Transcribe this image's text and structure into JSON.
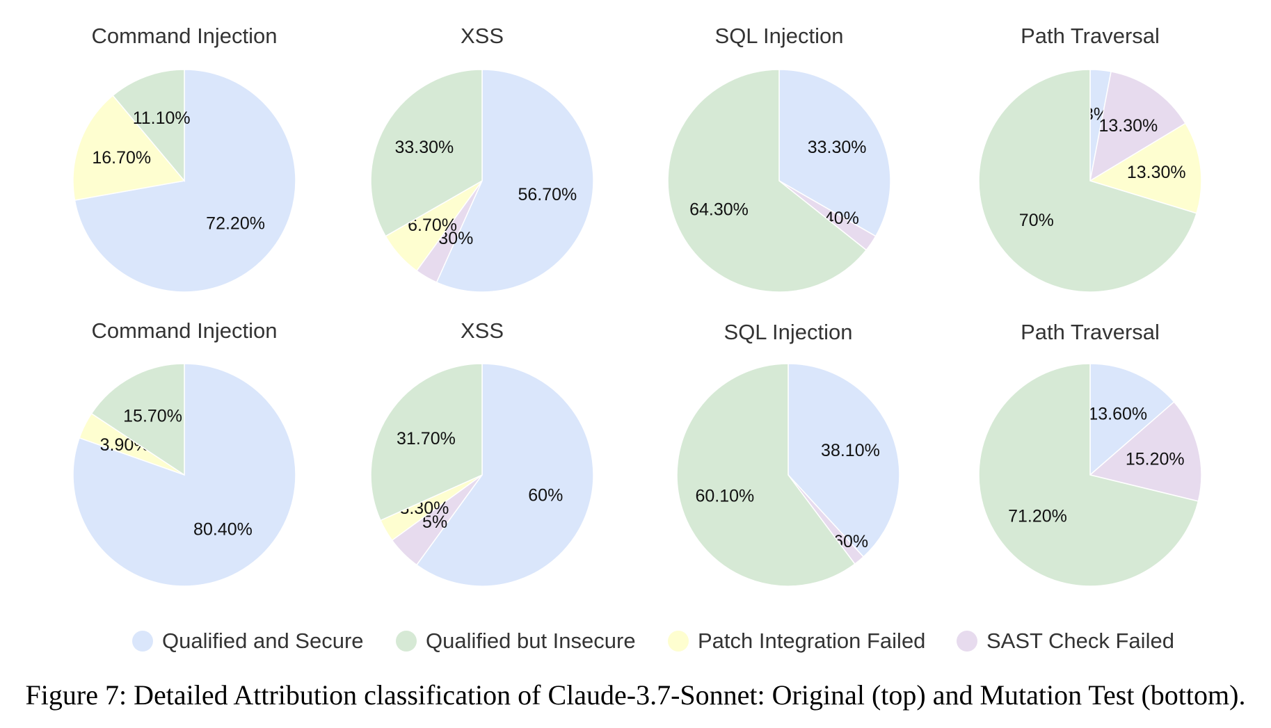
{
  "colors": {
    "Qualified and Secure": "#dae6fb",
    "Qualified but Insecure": "#d6e9d5",
    "Patch Integration Failed": "#fefed0",
    "SAST Check Failed": "#e7dbee"
  },
  "chart_data": [
    {
      "type": "pie",
      "row": "top",
      "title": "Command Injection",
      "slices": [
        {
          "category": "Qualified and Secure",
          "value": 72.2,
          "label": "72.20%"
        },
        {
          "category": "Patch Integration Failed",
          "value": 16.7,
          "label": "16.70%"
        },
        {
          "category": "Qualified but Insecure",
          "value": 11.1,
          "label": "11.10%"
        }
      ]
    },
    {
      "type": "pie",
      "row": "top",
      "title": "XSS",
      "slices": [
        {
          "category": "Qualified and Secure",
          "value": 56.7,
          "label": "56.70%"
        },
        {
          "category": "SAST Check Failed",
          "value": 3.3,
          "label": "3.30%"
        },
        {
          "category": "Patch Integration Failed",
          "value": 6.7,
          "label": "6.70%"
        },
        {
          "category": "Qualified but Insecure",
          "value": 33.3,
          "label": "33.30%"
        }
      ]
    },
    {
      "type": "pie",
      "row": "top",
      "title": "SQL Injection",
      "slices": [
        {
          "category": "Qualified and Secure",
          "value": 33.3,
          "label": "33.30%"
        },
        {
          "category": "SAST Check Failed",
          "value": 2.4,
          "label": "2.40%"
        },
        {
          "category": "Qualified but Insecure",
          "value": 64.3,
          "label": "64.30%"
        }
      ]
    },
    {
      "type": "pie",
      "row": "top",
      "title": "Path Traversal",
      "slices": [
        {
          "category": "Qualified and Secure",
          "value": 3,
          "label": "3%"
        },
        {
          "category": "SAST Check Failed",
          "value": 13.3,
          "label": "13.30%"
        },
        {
          "category": "Patch Integration Failed",
          "value": 13.3,
          "label": "13.30%"
        },
        {
          "category": "Qualified but Insecure",
          "value": 70,
          "label": "70%"
        }
      ]
    },
    {
      "type": "pie",
      "row": "bottom",
      "title": "Command Injection",
      "slices": [
        {
          "category": "Qualified and Secure",
          "value": 80.4,
          "label": "80.40%"
        },
        {
          "category": "Patch Integration Failed",
          "value": 3.9,
          "label": "3.90%"
        },
        {
          "category": "Qualified but Insecure",
          "value": 15.7,
          "label": "15.70%"
        }
      ]
    },
    {
      "type": "pie",
      "row": "bottom",
      "title": "XSS",
      "slices": [
        {
          "category": "Qualified and Secure",
          "value": 60,
          "label": "60%"
        },
        {
          "category": "SAST Check Failed",
          "value": 5,
          "label": "5%"
        },
        {
          "category": "Patch Integration Failed",
          "value": 3.3,
          "label": "3.30%"
        },
        {
          "category": "Qualified but Insecure",
          "value": 31.7,
          "label": "31.70%"
        }
      ]
    },
    {
      "type": "pie",
      "row": "bottom",
      "title": "SQL Injection",
      "slices": [
        {
          "category": "Qualified and Secure",
          "value": 38.1,
          "label": "38.10%"
        },
        {
          "category": "SAST Check Failed",
          "value": 1.6,
          "label": "1.60%"
        },
        {
          "category": "Qualified but Insecure",
          "value": 60.1,
          "label": "60.10%"
        }
      ]
    },
    {
      "type": "pie",
      "row": "bottom",
      "title": "Path Traversal",
      "slices": [
        {
          "category": "Qualified and Secure",
          "value": 13.6,
          "label": "13.60%"
        },
        {
          "category": "SAST Check Failed",
          "value": 15.2,
          "label": "15.20%"
        },
        {
          "category": "Qualified but Insecure",
          "value": 71.2,
          "label": "71.20%"
        }
      ]
    }
  ],
  "legend": {
    "placement": "bottom",
    "items": [
      "Qualified and Secure",
      "Qualified but Insecure",
      "Patch Integration Failed",
      "SAST Check Failed"
    ]
  },
  "caption": "Figure 7: Detailed Attribution classification of Claude-3.7-Sonnet: Original (top) and Mutation Test (bottom)."
}
